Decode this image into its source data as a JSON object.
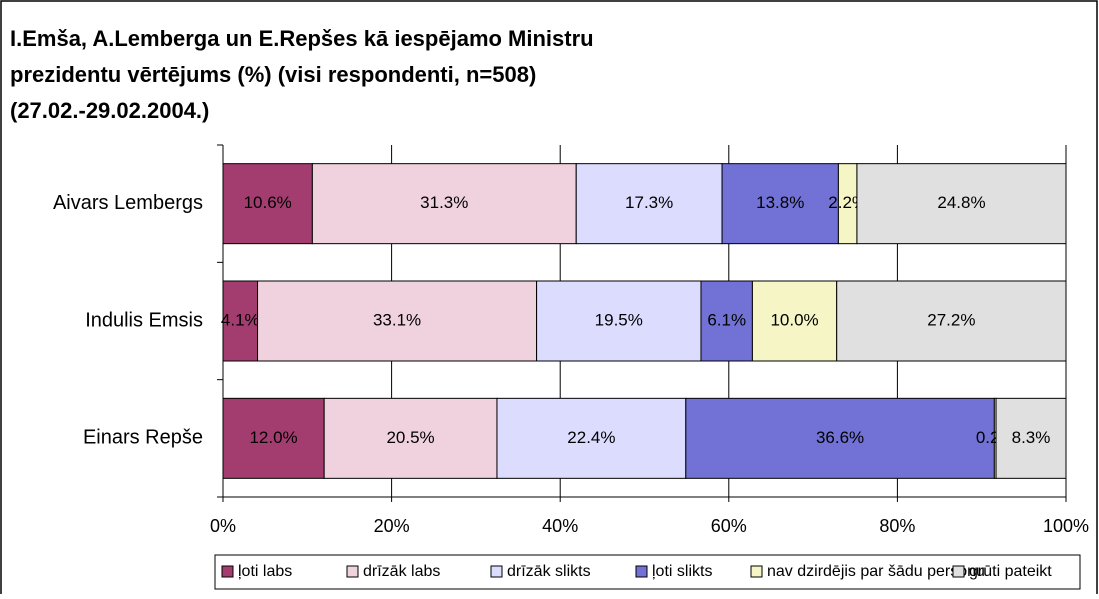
{
  "chart_data": {
    "type": "stacked_barh",
    "title": [
      "I.Emša, A.Lemberga un E.Repšes kā iespējamo Ministru",
      "prezidentu vērtējums (%) (visi respondenti, n=508)",
      "(27.02.-29.02.2004.)"
    ],
    "categories": [
      "Aivars Lembergs",
      "Indulis Emsis",
      "Einars Repše"
    ],
    "series": [
      {
        "name": "ļoti labs",
        "color": "#a33d6f",
        "values": [
          10.6,
          4.1,
          12.0
        ],
        "value_labels": [
          "10.6%",
          "4.1%",
          "12.0%"
        ]
      },
      {
        "name": "drīzāk labs",
        "color": "#f0d2de",
        "values": [
          31.3,
          33.1,
          20.5
        ],
        "value_labels": [
          "31.3%",
          "33.1%",
          "20.5%"
        ]
      },
      {
        "name": "drīzāk slikts",
        "color": "#dcdcff",
        "values": [
          17.3,
          19.5,
          22.4
        ],
        "value_labels": [
          "17.3%",
          "19.5%",
          "22.4%"
        ]
      },
      {
        "name": "ļoti slikts",
        "color": "#7272d6",
        "values": [
          13.8,
          6.1,
          36.6
        ],
        "value_labels": [
          "13.8%",
          "6.1%",
          "36.6%"
        ]
      },
      {
        "name": "nav dzirdējis par šādu personu",
        "color": "#f5f5c6",
        "values": [
          2.2,
          10.0,
          0.2
        ],
        "value_labels": [
          "2.2%",
          "10.0%",
          "0.2%"
        ]
      },
      {
        "name": "grūti pateikt",
        "color": "#e0e0e0",
        "values": [
          24.8,
          27.2,
          8.3
        ],
        "value_labels": [
          "24.8%",
          "27.2%",
          "8.3%"
        ]
      }
    ],
    "xlim": [
      0,
      100
    ],
    "xticks": [
      {
        "value": 0,
        "label": "0%"
      },
      {
        "value": 20,
        "label": "20%"
      },
      {
        "value": 40,
        "label": "40%"
      },
      {
        "value": 60,
        "label": "60%"
      },
      {
        "value": 80,
        "label": "80%"
      },
      {
        "value": 100,
        "label": "100%"
      }
    ],
    "grid": true,
    "legend": "bottom"
  }
}
